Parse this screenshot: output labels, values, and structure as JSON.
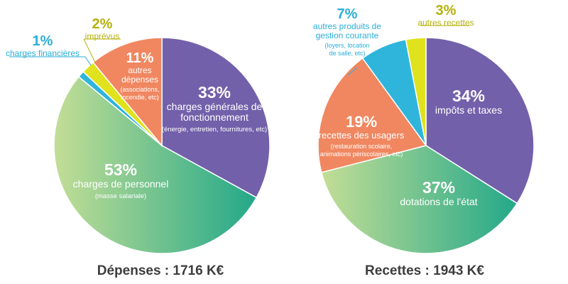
{
  "colors": {
    "purple": "#7360aa",
    "green_start": "#c3de96",
    "green_end": "#23a889",
    "cyan": "#2fb5dc",
    "olive": "#b5b10a",
    "yellow": "#dfe21c",
    "orange": "#f08760",
    "cyan_text": "#2aaed8"
  },
  "chart_data": [
    {
      "type": "pie",
      "title": "Dépenses : 1716 K€",
      "slices": [
        {
          "value": 33,
          "pct": "33%",
          "label": "charges générales de fonctionnement",
          "label_lines": [
            "charges générales de",
            "fonctionnement"
          ],
          "detail": "(énergie, entretien, fournitures, etc)",
          "color": "purple"
        },
        {
          "value": 53,
          "pct": "53%",
          "label": "charges de personnel",
          "label_lines": [
            "charges de personnel"
          ],
          "detail": "(masse salariale)",
          "color": "green"
        },
        {
          "value": 1,
          "pct": "1%",
          "label": "charges financières",
          "label_lines": [
            "charges financières"
          ],
          "detail": "",
          "color": "cyan"
        },
        {
          "value": 2,
          "pct": "2%",
          "label": "imprévus",
          "label_lines": [
            "imprévus"
          ],
          "detail": "",
          "color": "yellow"
        },
        {
          "value": 11,
          "pct": "11%",
          "label": "autres dépenses",
          "label_lines": [
            "autres",
            "dépenses"
          ],
          "detail": "(associations, incendie, etc)",
          "color": "orange"
        }
      ]
    },
    {
      "type": "pie",
      "title": "Recettes : 1943 K€",
      "slices": [
        {
          "value": 34,
          "pct": "34%",
          "label": "impôts et taxes",
          "label_lines": [
            "impôts et taxes"
          ],
          "detail": "",
          "color": "purple"
        },
        {
          "value": 37,
          "pct": "37%",
          "label": "dotations de l'état",
          "label_lines": [
            "dotations de l'état"
          ],
          "detail": "",
          "color": "green"
        },
        {
          "value": 19,
          "pct": "19%",
          "label": "recettes des usagers",
          "label_lines": [
            "recettes des usagers"
          ],
          "detail": "(restauration scolaire, animations périscolaires, etc)",
          "color": "orange"
        },
        {
          "value": 7,
          "pct": "7%",
          "label": "autres produits de gestion courante",
          "label_lines": [
            "autres produits de",
            "gestion courante"
          ],
          "detail": "(loyers, location de salle, etc)",
          "color": "cyan"
        },
        {
          "value": 3,
          "pct": "3%",
          "label": "autres recettes",
          "label_lines": [
            "autres recettes"
          ],
          "detail": "",
          "color": "yellow"
        }
      ]
    }
  ]
}
